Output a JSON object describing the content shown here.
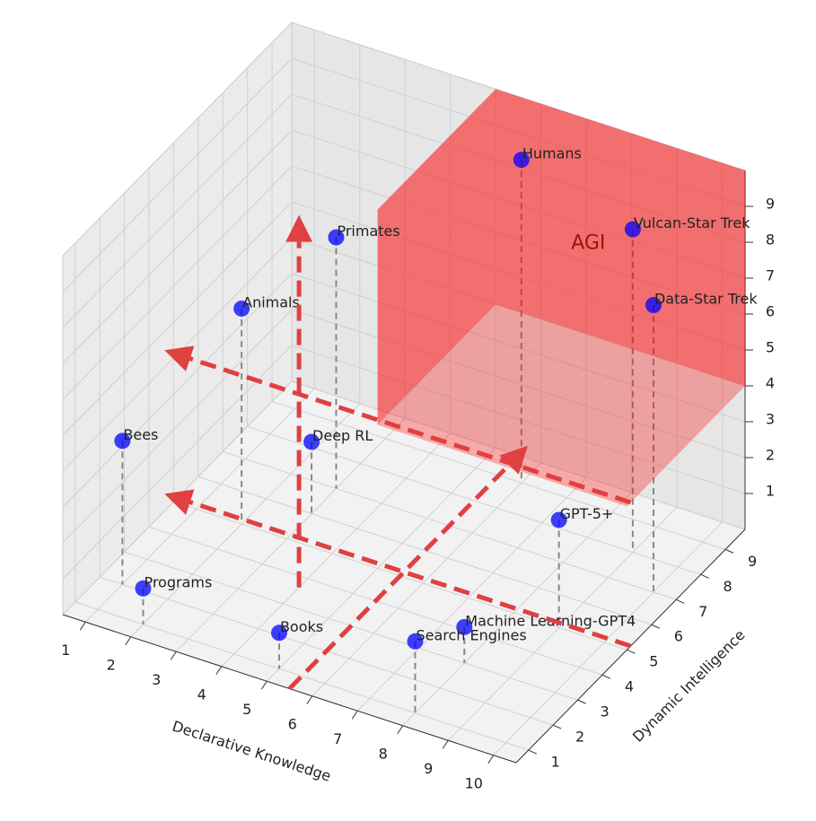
{
  "chart_data": {
    "type": "scatter3d",
    "xlabel": "Declarative Knowledge",
    "ylabel": "Dynamic Intelligence",
    "xlim": [
      0.5,
      10.5
    ],
    "ylim": [
      0.5,
      9.8
    ],
    "zlim": [
      0,
      10
    ],
    "xticks": [
      1,
      2,
      3,
      4,
      5,
      6,
      7,
      8,
      9,
      10
    ],
    "yticks": [
      1,
      2,
      3,
      4,
      5,
      6,
      7,
      8,
      9
    ],
    "zticks": [
      1,
      2,
      3,
      4,
      5,
      6,
      7,
      8,
      9
    ],
    "color": "#0000ff",
    "points": [
      {
        "label": "Humans",
        "x": 6,
        "y": 9,
        "z": 9
      },
      {
        "label": "Vulcan-Star Trek",
        "x": 9,
        "y": 8,
        "z": 9
      },
      {
        "label": "Data-Star Trek",
        "x": 10,
        "y": 7,
        "z": 8
      },
      {
        "label": "Primates",
        "x": 3,
        "y": 7,
        "z": 7
      },
      {
        "label": "Animals",
        "x": 2,
        "y": 5,
        "z": 6
      },
      {
        "label": "Deep RL",
        "x": 3,
        "y": 6,
        "z": 2
      },
      {
        "label": "Bees",
        "x": 1,
        "y": 2,
        "z": 4
      },
      {
        "label": "Programs",
        "x": 2,
        "y": 1,
        "z": 1
      },
      {
        "label": "GPT-5+",
        "x": 9,
        "y": 5,
        "z": 3
      },
      {
        "label": "Machine Learning-GPT4",
        "x": 8,
        "y": 3,
        "z": 1
      },
      {
        "label": "Books",
        "x": 5,
        "y": 1,
        "z": 1
      },
      {
        "label": "Search Engines",
        "x": 8,
        "y": 1,
        "z": 2
      }
    ],
    "region": {
      "label": "AGI",
      "color": "#ff0000",
      "x": [
        5,
        10.5
      ],
      "y": [
        5,
        9.8
      ],
      "z": [
        4,
        10
      ]
    },
    "arrow_color": "#e04040"
  }
}
